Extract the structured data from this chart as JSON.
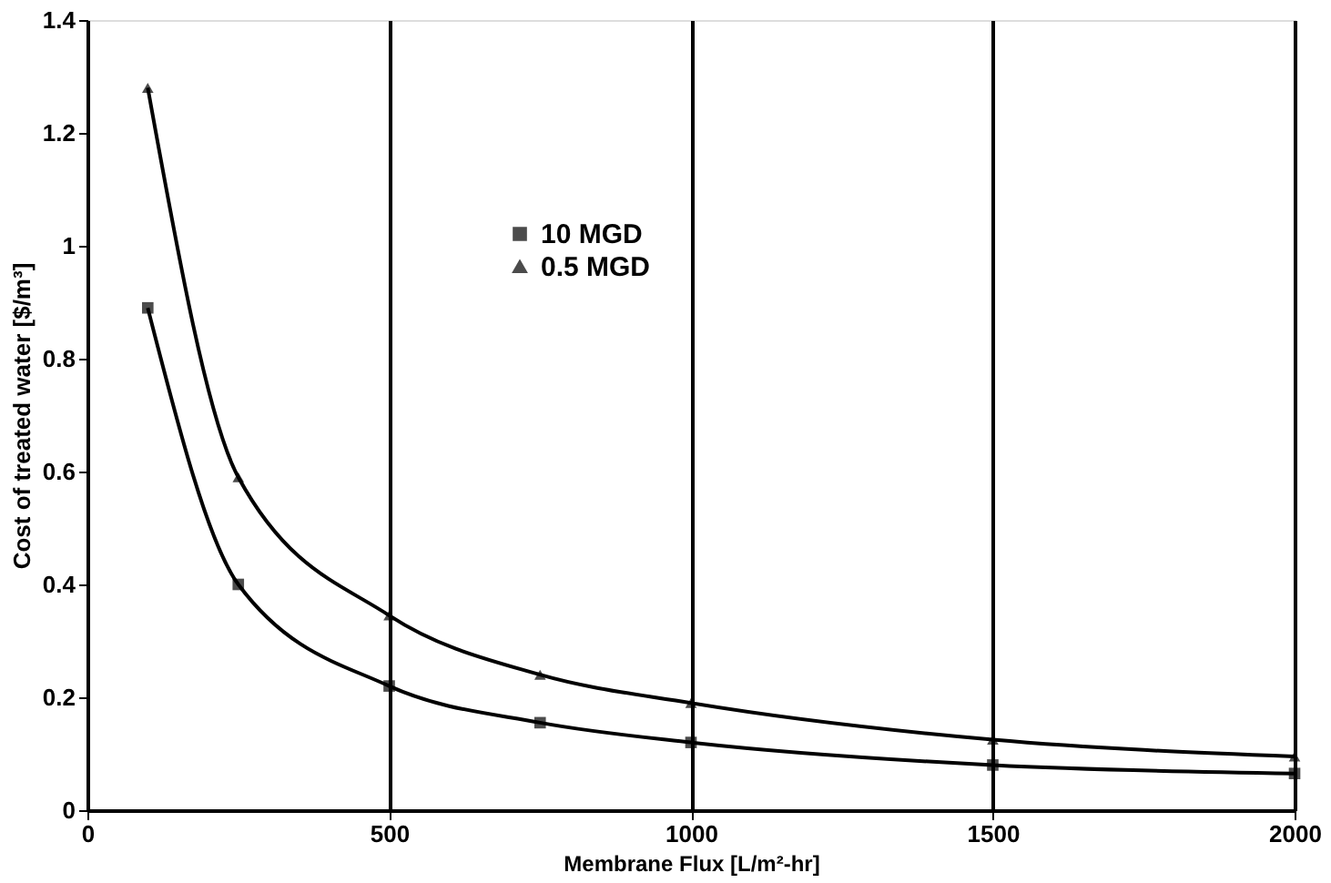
{
  "chart_data": {
    "type": "line",
    "xlabel": "Membrane Flux [L/m²-hr]",
    "ylabel": "Cost of treated water [$/m³]",
    "x": [
      100,
      250,
      500,
      750,
      1000,
      1500,
      2000
    ],
    "series": [
      {
        "name": "10 MGD",
        "color": "#000000",
        "marker": "square",
        "values": [
          0.89,
          0.4,
          0.22,
          0.155,
          0.12,
          0.08,
          0.065
        ]
      },
      {
        "name": "0.5 MGD",
        "color": "#000000",
        "marker": "triangle",
        "values": [
          1.28,
          0.59,
          0.345,
          0.24,
          0.19,
          0.125,
          0.095
        ]
      }
    ],
    "xlim": [
      0,
      2000
    ],
    "xticks": [
      0,
      500,
      1000,
      1500,
      2000
    ],
    "ylim": [
      0,
      1.4
    ],
    "yticks": [
      0,
      0.2,
      0.4,
      0.6,
      0.8,
      1,
      1.2,
      1.4
    ],
    "grid": "x",
    "legend": "top",
    "line_style": "solid"
  }
}
